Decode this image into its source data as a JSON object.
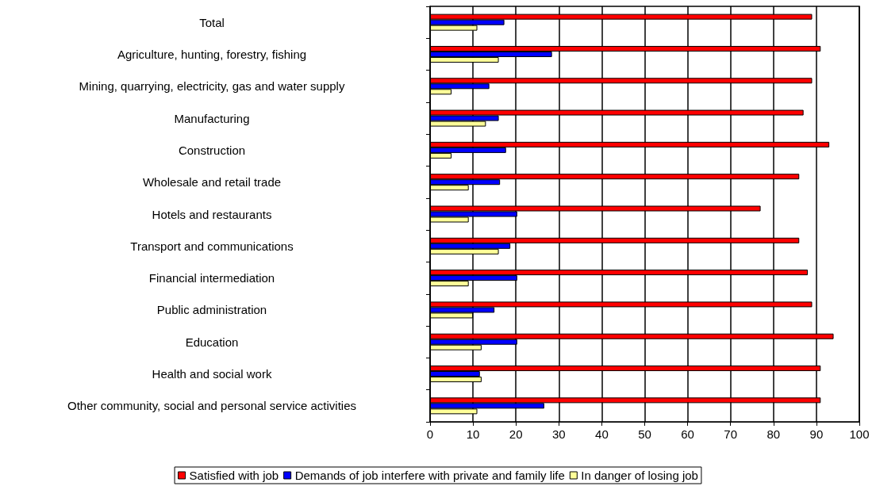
{
  "chart_data": {
    "type": "bar",
    "orientation": "horizontal",
    "categories": [
      "Total",
      "Agriculture, hunting, forestry, fishing",
      "Mining, quarrying, electricity, gas and water supply",
      "Manufacturing",
      "Construction",
      "Wholesale and retail trade",
      "Hotels and restaurants",
      "Transport and communications",
      "Financial intermediation",
      "Public administration",
      "Education",
      "Health and social work",
      "Other community, social and personal service activities"
    ],
    "series": [
      {
        "name": "Satisfied with job",
        "color": "#ff0000",
        "values": [
          89,
          91,
          89,
          87,
          93,
          86,
          77,
          86,
          88,
          89,
          94,
          91,
          91
        ]
      },
      {
        "name": "Demands of job interfere with private and family life",
        "color": "#0000ff",
        "values": [
          17.3,
          28.4,
          13.8,
          16,
          17.7,
          16.3,
          20.3,
          18.7,
          20.3,
          15,
          20.3,
          11.6,
          26.6
        ]
      },
      {
        "name": "In danger of losing job",
        "color": "#ffff99",
        "values": [
          11,
          16,
          5,
          13,
          5,
          9,
          9,
          16,
          9,
          10,
          12,
          12,
          11
        ]
      }
    ],
    "xlim": [
      0,
      100
    ],
    "xticks": [
      0,
      10,
      20,
      30,
      40,
      50,
      60,
      70,
      80,
      90,
      100
    ],
    "grid": "x",
    "legend": "bottom"
  }
}
